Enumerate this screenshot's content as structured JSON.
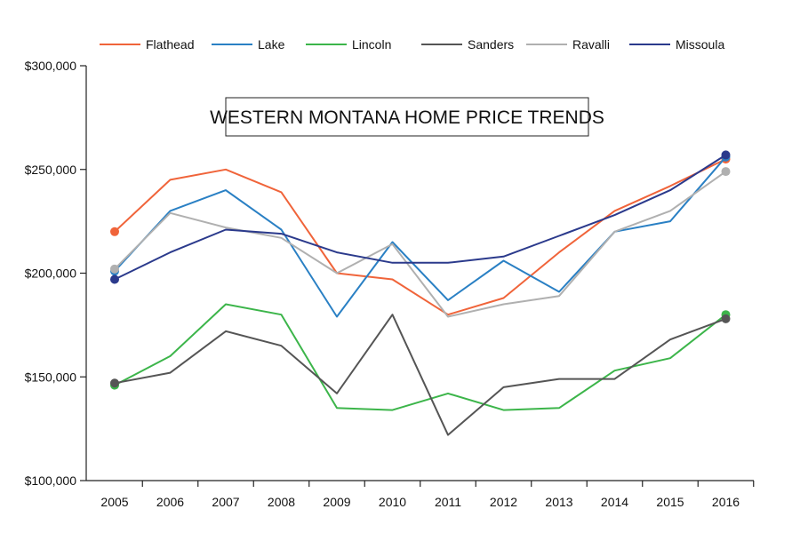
{
  "chart_data": {
    "type": "line",
    "title": "WESTERN MONTANA HOME PRICE TRENDS",
    "xlabel": "",
    "ylabel": "",
    "x": [
      "2005",
      "2006",
      "2007",
      "2008",
      "2009",
      "2010",
      "2011",
      "2012",
      "2013",
      "2014",
      "2015",
      "2016"
    ],
    "ylim": [
      100000,
      300000
    ],
    "yticks": [
      "$100,000",
      "$150,000",
      "$200,000",
      "$250,000",
      "$300,000"
    ],
    "ytick_values": [
      100000,
      150000,
      200000,
      250000,
      300000
    ],
    "legend_position": "top",
    "grid": false,
    "series": [
      {
        "name": "Flathead",
        "color": "#f0643a",
        "values": [
          220000,
          245000,
          250000,
          239000,
          200000,
          197000,
          180000,
          188000,
          210000,
          230000,
          242000,
          255000
        ]
      },
      {
        "name": "Lake",
        "color": "#2a80c4",
        "values": [
          201000,
          230000,
          240000,
          221000,
          179000,
          215000,
          187000,
          206000,
          191000,
          220000,
          225000,
          256000
        ]
      },
      {
        "name": "Lincoln",
        "color": "#3cb54a",
        "values": [
          146000,
          160000,
          185000,
          180000,
          135000,
          134000,
          142000,
          134000,
          135000,
          153000,
          159000,
          180000
        ]
      },
      {
        "name": "Sanders",
        "color": "#555555",
        "values": [
          147000,
          152000,
          172000,
          165000,
          142000,
          180000,
          122000,
          145000,
          149000,
          149000,
          168000,
          178000
        ]
      },
      {
        "name": "Ravalli",
        "color": "#b0b0b0",
        "values": [
          202000,
          229000,
          222000,
          217000,
          200000,
          214000,
          179000,
          185000,
          189000,
          220000,
          230000,
          249000
        ]
      },
      {
        "name": "Missoula",
        "color": "#2b3a8c",
        "values": [
          197000,
          210000,
          221000,
          219000,
          210000,
          205000,
          205000,
          208000,
          218000,
          228000,
          240000,
          257000
        ]
      }
    ]
  }
}
